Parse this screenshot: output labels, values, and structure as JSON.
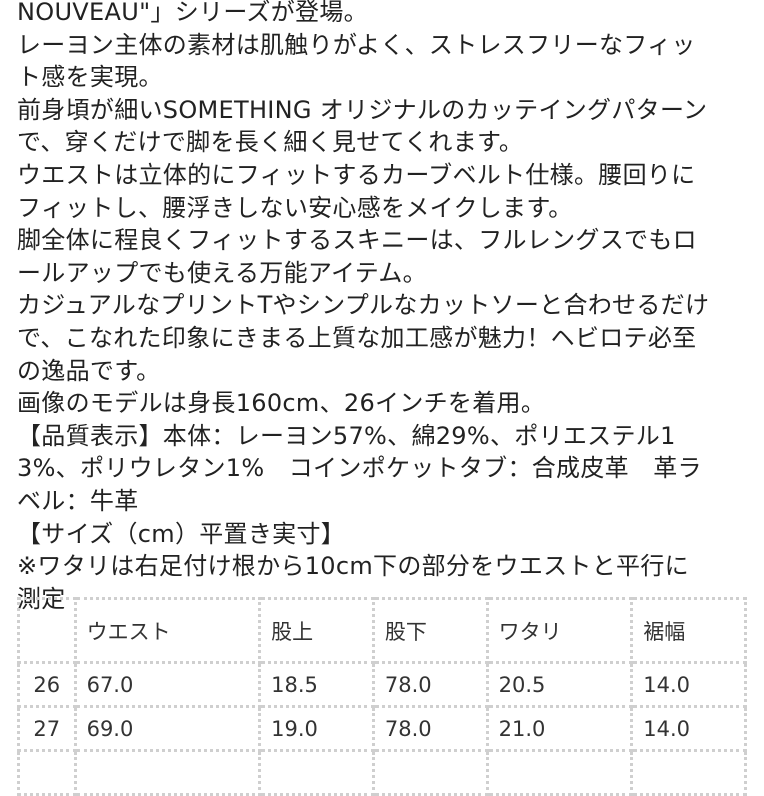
{
  "lines": [
    "NOUVEAU\"」シリーズが登場。",
    "レーヨン主体の素材は肌触りがよく、ストレスフリーなフィッ",
    "ト感を実現。",
    "前身頃が細いSOMETHING オリジナルのカッテイングパターン",
    "で、穿くだけで脚を長く細く見せてくれます。",
    "ウエストは立体的にフィットするカーブベルト仕様。腰回りに",
    "フィットし、腰浮きしない安心感をメイクします。",
    "脚全体に程良くフィットするスキニーは、フルレングスでもロ",
    "ールアップでも使える万能アイテム。",
    "カジュアルなプリントTやシンプルなカットソーと合わせるだけ",
    "で、こなれた印象にきまる上質な加工感が魅力！ヘビロテ必至",
    "の逸品です。",
    "画像のモデルは身長160cm、26インチを着用。",
    "【品質表示】本体：レーヨン57%、綿29%、ポリエステル1",
    "3%、ポリウレタン1%　コインポケットタブ：合成皮革　革ラ",
    "ベル：牛革",
    "【サイズ（cm）平置き実寸】",
    "※ワタリは右足付け根から10cm下の部分をウエストと平行に",
    "測定"
  ],
  "size_table": {
    "headers": [
      "",
      "ウエスト",
      "股上",
      "股下",
      "ワタリ",
      "裾幅"
    ],
    "rows": [
      [
        "26",
        "67.0",
        "18.5",
        "78.0",
        "20.5",
        "14.0"
      ],
      [
        "27",
        "69.0",
        "19.0",
        "78.0",
        "21.0",
        "14.0"
      ],
      [
        "",
        "",
        "",
        "",
        "",
        ""
      ]
    ]
  }
}
